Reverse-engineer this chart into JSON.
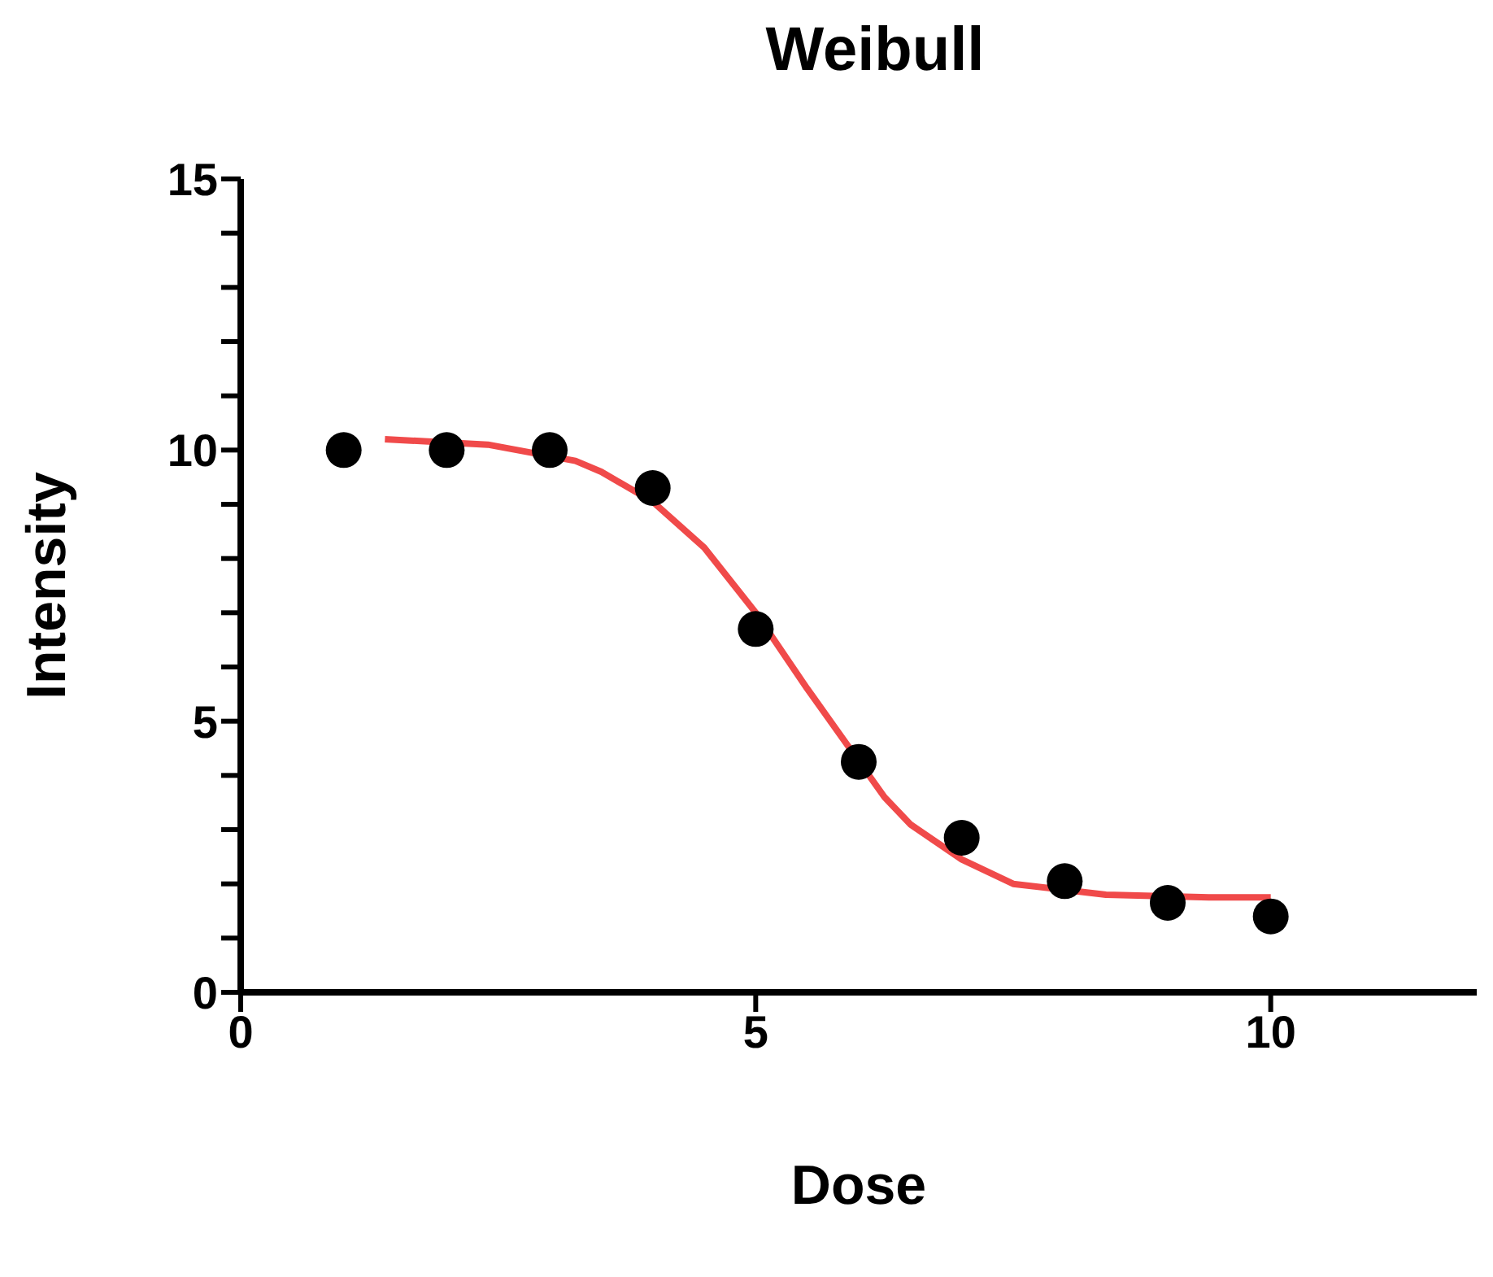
{
  "chart_data": {
    "type": "scatter",
    "title": "Weibull",
    "xlabel": "Dose",
    "ylabel": "Intensity",
    "xlim": [
      0,
      12
    ],
    "xticks": [
      0,
      5,
      10
    ],
    "ylim": [
      0,
      15
    ],
    "yticks": [
      0,
      {
        "value": 1,
        "label": null
      },
      {
        "value": 2,
        "label": null
      },
      {
        "value": 3,
        "label": null
      },
      {
        "value": 4,
        "label": null
      },
      5,
      {
        "value": 6,
        "label": null
      },
      {
        "value": 7,
        "label": null
      },
      {
        "value": 8,
        "label": null
      },
      {
        "value": 9,
        "label": null
      },
      10,
      {
        "value": 11,
        "label": null
      },
      {
        "value": 12,
        "label": null
      },
      {
        "value": 13,
        "label": null
      },
      {
        "value": 14,
        "label": null
      },
      15
    ],
    "grid": false,
    "legend": false,
    "series": [
      {
        "color": "#000000",
        "marker": "circle",
        "x": [
          1,
          2,
          3,
          4,
          5,
          6,
          7,
          8,
          9,
          10
        ],
        "values": [
          10,
          10,
          10,
          9.3,
          6.7,
          4.25,
          2.85,
          2.05,
          1.65,
          1.4
        ]
      },
      {
        "type": "line",
        "color": "#f04a4a",
        "marker": "none",
        "line_style": "solid",
        "x": [
          1.4,
          2.4,
          3.25,
          3.5,
          4,
          4.5,
          5,
          5.5,
          6.25,
          6.5,
          7,
          7.5,
          8.4,
          9.4,
          10
        ],
        "values": [
          10.2,
          10.1,
          9.8,
          9.6,
          9.05,
          8.2,
          7.0,
          5.6,
          3.6,
          3.1,
          2.45,
          2.0,
          1.8,
          1.75,
          1.75
        ]
      }
    ]
  }
}
